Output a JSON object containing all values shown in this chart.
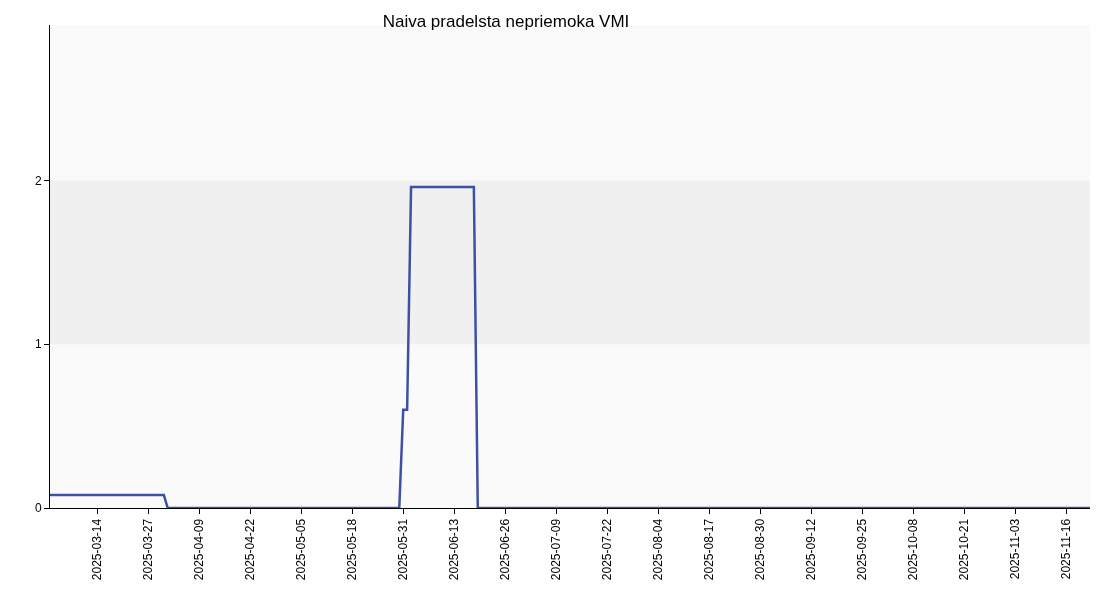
{
  "chart_data": {
    "type": "line",
    "title": "Naiva pradelsta nepriemoka VMI",
    "x": [
      "2025-03-02",
      "2025-03-31",
      "2025-04-01",
      "2025-05-30",
      "2025-05-31",
      "2025-06-01",
      "2025-06-02",
      "2025-06-18",
      "2025-06-19",
      "2025-11-22"
    ],
    "series": [
      {
        "color": "#3d51a3",
        "values": [
          0.08,
          0.08,
          0,
          0,
          0.6,
          0.6,
          1.96,
          1.96,
          0,
          0
        ]
      }
    ],
    "xlim": [
      "2025-03-02",
      "2025-11-22"
    ],
    "xticks": [
      "2025-03-14",
      "2025-03-27",
      "2025-04-09",
      "2025-04-22",
      "2025-05-05",
      "2025-05-18",
      "2025-05-31",
      "2025-06-13",
      "2025-06-26",
      "2025-07-09",
      "2025-07-22",
      "2025-08-04",
      "2025-08-17",
      "2025-08-30",
      "2025-09-12",
      "2025-09-25",
      "2025-10-08",
      "2025-10-21",
      "2025-11-03",
      "2025-11-16"
    ],
    "ylim": [
      0,
      2.95
    ],
    "yticks": [
      0,
      1,
      2
    ],
    "bands": [
      {
        "axis": "y",
        "from": 1,
        "to": 2,
        "color": "#f0f0f0"
      }
    ],
    "grid": false,
    "marker": "none",
    "line_style": "solid"
  }
}
